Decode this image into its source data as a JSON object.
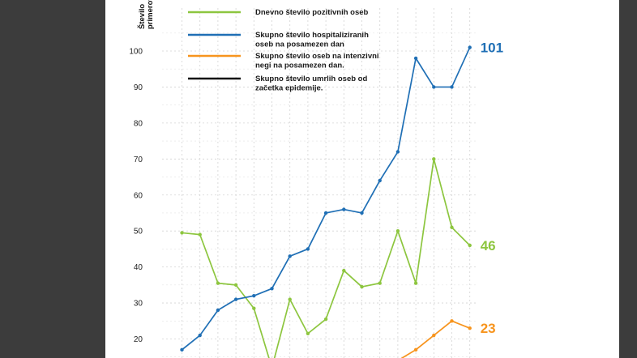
{
  "chart_data": {
    "type": "line",
    "ylabel_lines": [
      "Število",
      "primerov"
    ],
    "ylim": [
      15,
      105
    ],
    "yticks": [
      20,
      30,
      40,
      50,
      60,
      70,
      80,
      90,
      100
    ],
    "grid": true,
    "legend_position": "top-left",
    "series": [
      {
        "name_lines": [
          "Dnevno število pozitivnih oseb"
        ],
        "color": "#8dc63f",
        "values": [
          49.5,
          49,
          35.5,
          35,
          28.5,
          12,
          31,
          21.5,
          25.5,
          39,
          34.5,
          35.5,
          50,
          35.5,
          70,
          51,
          46
        ],
        "end_label": "46"
      },
      {
        "name_lines": [
          "Skupno število hospitaliziranih",
          "oseb na posamezen dan"
        ],
        "color": "#1f6fb5",
        "values": [
          17,
          21,
          28,
          31,
          32,
          34,
          43,
          45,
          55,
          56,
          55,
          64,
          72,
          98,
          90,
          90,
          101
        ],
        "end_label": "101"
      },
      {
        "name_lines": [
          "Skupno število oseb na intenzivni",
          "negi na posamezen dan."
        ],
        "color": "#f7941d",
        "values": [
          null,
          null,
          null,
          null,
          null,
          null,
          null,
          null,
          null,
          null,
          null,
          null,
          14,
          17,
          21,
          25,
          23
        ],
        "end_label": "23"
      },
      {
        "name_lines": [
          "Skupno število umrlih oseb od",
          "začetka epidemije."
        ],
        "color": "#111111",
        "values": [],
        "end_label": ""
      }
    ]
  }
}
